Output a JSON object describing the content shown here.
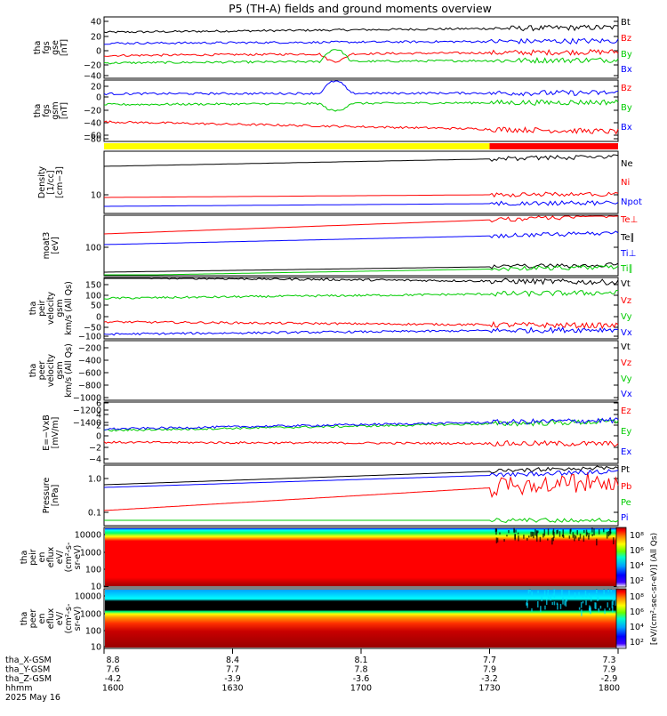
{
  "title": "P5 (TH-A) fields and ground moments overview",
  "date_label": "2025 May 16",
  "orbit_rows": [
    {
      "label": "tha_X-GSM",
      "values": [
        "8.8",
        "8.4",
        "8.1",
        "7.7",
        "7.3"
      ]
    },
    {
      "label": "tha_Y-GSM",
      "values": [
        "7.6",
        "7.7",
        "7.8",
        "7.9",
        "7.9"
      ]
    },
    {
      "label": "tha_Z-GSM",
      "values": [
        "-4.2",
        "-3.9",
        "-3.6",
        "-3.2",
        "-2.9"
      ]
    },
    {
      "label": "hhmm",
      "values": [
        "1600",
        "1630",
        "1700",
        "1730",
        "1800"
      ]
    }
  ],
  "colors": {
    "black": "#000000",
    "red": "#ff0000",
    "green": "#00cc00",
    "blue": "#0000ff",
    "yellow": "#ffff00"
  },
  "colorbar": {
    "label": "[eV/(cm²-sec-sr-eV)] (All Qs)",
    "ticks_top": [
      "10⁸",
      "10⁶",
      "10⁴",
      "10²"
    ],
    "ticks_bottom": [
      "10⁸",
      "10⁶",
      "10⁴",
      "10²"
    ]
  },
  "chart_data": [
    {
      "type": "line",
      "ylabel": "tha fgs gse [nT]",
      "yticks": [
        "40",
        "20",
        "0",
        "−20",
        "−40"
      ],
      "ylim": [
        -45,
        55
      ],
      "series": [
        {
          "name": "Bt",
          "color": "black",
          "start": 30,
          "end": 38
        },
        {
          "name": "Bz",
          "color": "red",
          "start": -8,
          "end": -2
        },
        {
          "name": "By",
          "color": "green",
          "start": -20,
          "end": -15
        },
        {
          "name": "Bx",
          "color": "blue",
          "start": 12,
          "end": 16
        }
      ]
    },
    {
      "type": "line",
      "ylabel": "tha fgs gsm [nT]",
      "yticks": [
        "20",
        "0",
        "−20",
        "−40",
        "−60",
        "−80"
      ],
      "ylim": [
        -95,
        30
      ],
      "series": [
        {
          "name": "Bz",
          "color": "red",
          "start": -55,
          "end": -75
        },
        {
          "name": "By",
          "color": "green",
          "start": -20,
          "end": -15
        },
        {
          "name": "Bx",
          "color": "blue",
          "start": 2,
          "end": 4
        }
      ]
    },
    {
      "type": "flag",
      "segments": [
        {
          "color": "yellow",
          "from": "1600",
          "to": "1733"
        },
        {
          "color": "red",
          "from": "1733",
          "to": "1800"
        }
      ]
    },
    {
      "type": "line",
      "ylabel": "Density [1/cc] [cm−3]",
      "scale": "log",
      "yticks": [
        "10"
      ],
      "series": [
        {
          "name": "Ne",
          "color": "black",
          "start": 26,
          "end": 34
        },
        {
          "name": "Ni",
          "color": "red",
          "start": 9.8,
          "end": 10.2
        },
        {
          "name": "Npot",
          "color": "blue",
          "start": 5.2,
          "end": 5.5
        }
      ]
    },
    {
      "type": "line",
      "ylabel": "moat3 [eV]",
      "scale": "log",
      "yticks": [
        "100"
      ],
      "series": [
        {
          "name": "Te⊥",
          "color": "red",
          "start": 22,
          "end": 36
        },
        {
          "name": "Te∥",
          "color": "black",
          "start": 20,
          "end": 22
        },
        {
          "name": "Ti⊥",
          "color": "blue",
          "start": 260,
          "end": 480
        },
        {
          "name": "Ti∥",
          "color": "green",
          "start": 140,
          "end": 250
        }
      ]
    },
    {
      "type": "line",
      "ylabel": "tha peir velocity gsm km/s (All Qs)",
      "yticks": [
        "150",
        "100",
        "50",
        "0",
        "−50",
        "−100"
      ],
      "ylim": [
        -140,
        185
      ],
      "series": [
        {
          "name": "Vt",
          "color": "black",
          "start": 185,
          "end": 160
        },
        {
          "name": "Vz",
          "color": "red",
          "start": -50,
          "end": -70
        },
        {
          "name": "Vy",
          "color": "green",
          "start": 75,
          "end": 105
        },
        {
          "name": "Vx",
          "color": "blue",
          "start": -115,
          "end": -90
        }
      ]
    },
    {
      "type": "line",
      "ylabel": "tha peer velocity gsm km/s (All Qs)",
      "yticks": [
        "−200",
        "−400",
        "−600",
        "−800",
        "−1000",
        "−1200",
        "−1400"
      ],
      "ylim": [
        -1450,
        -100
      ],
      "series": [
        {
          "name": "Vt",
          "color": "black"
        },
        {
          "name": "Vz",
          "color": "red"
        },
        {
          "name": "Vy",
          "color": "green"
        },
        {
          "name": "Vx",
          "color": "blue"
        }
      ]
    },
    {
      "type": "line",
      "ylabel": "E=−VxB [mV/m]",
      "yticks": [
        "6",
        "4",
        "2",
        "0",
        "−2",
        "−4"
      ],
      "ylim": [
        -4.5,
        8
      ],
      "series": [
        {
          "name": "Ez",
          "color": "red",
          "start": -0.2,
          "end": -0.5
        },
        {
          "name": "Ey",
          "color": "green",
          "start": 2.2,
          "end": 4
        },
        {
          "name": "Ex",
          "color": "blue",
          "start": 2.5,
          "end": 4.3
        }
      ]
    },
    {
      "type": "line",
      "ylabel": "Pressure [nPa]",
      "scale": "log",
      "yticks": [
        "1.0",
        "0.1"
      ],
      "series": [
        {
          "name": "Pt",
          "color": "black",
          "start": 0.7,
          "end": 1.7
        },
        {
          "name": "Pb",
          "color": "red",
          "start": 0.12,
          "end": 0.8
        },
        {
          "name": "Pe",
          "color": "green",
          "start": 0.05,
          "end": 0.05
        },
        {
          "name": "Pi",
          "color": "blue",
          "start": 0.6,
          "end": 1.1
        }
      ]
    },
    {
      "type": "heatmap",
      "ylabel": "tha peir en eflux eV/(cm²-s-sr-eV)",
      "yticks": [
        "10000",
        "1000",
        "100",
        "10"
      ]
    },
    {
      "type": "heatmap",
      "ylabel": "tha peer en eflux eV/(cm²-s-sr-eV)",
      "yticks": [
        "10000",
        "1000",
        "100",
        "10"
      ]
    }
  ]
}
